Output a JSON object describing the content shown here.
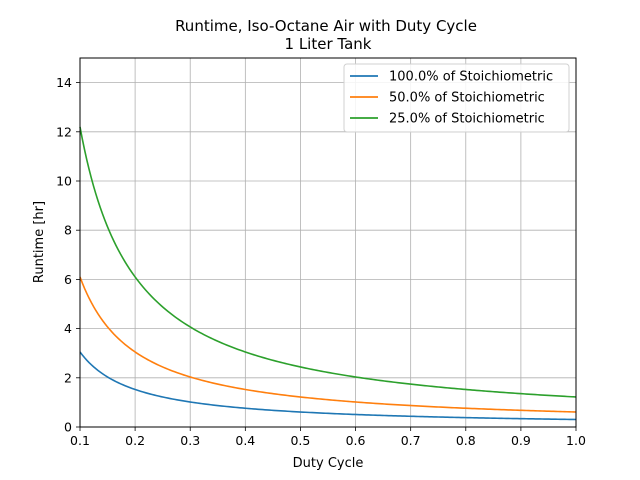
{
  "chart_data": {
    "type": "line",
    "title": "Runtime, Iso-Octane Air with Duty Cycle",
    "subtitle": "1 Liter Tank",
    "xlabel": "Duty Cycle",
    "ylabel": "Runtime [hr]",
    "xlim": [
      0.1,
      1.0
    ],
    "ylim": [
      0,
      15
    ],
    "xticks": [
      "0.1",
      "0.2",
      "0.3",
      "0.4",
      "0.5",
      "0.6",
      "0.7",
      "0.8",
      "0.9",
      "1.0"
    ],
    "yticks": [
      "0",
      "2",
      "4",
      "6",
      "8",
      "10",
      "12",
      "14"
    ],
    "grid": true,
    "legend_position": "top-right",
    "series": [
      {
        "name": "100.0% of Stoichiometric",
        "color": "#1f77b4",
        "x_start": 0.1,
        "x_end": 1.0,
        "values_at_x_start": 3.05,
        "values_at_x_end": 0.305,
        "model": "y = 0.305 / x"
      },
      {
        "name": "50.0% of Stoichiometric",
        "color": "#ff7f0e",
        "x_start": 0.1,
        "x_end": 1.0,
        "values_at_x_start": 6.1,
        "values_at_x_end": 0.61,
        "model": "y = 0.61 / x"
      },
      {
        "name": "25.0% of Stoichiometric",
        "color": "#2ca02c",
        "x_start": 0.1,
        "x_end": 1.0,
        "values_at_x_start": 12.2,
        "values_at_x_end": 1.22,
        "model": "y = 1.22 / x"
      }
    ]
  }
}
